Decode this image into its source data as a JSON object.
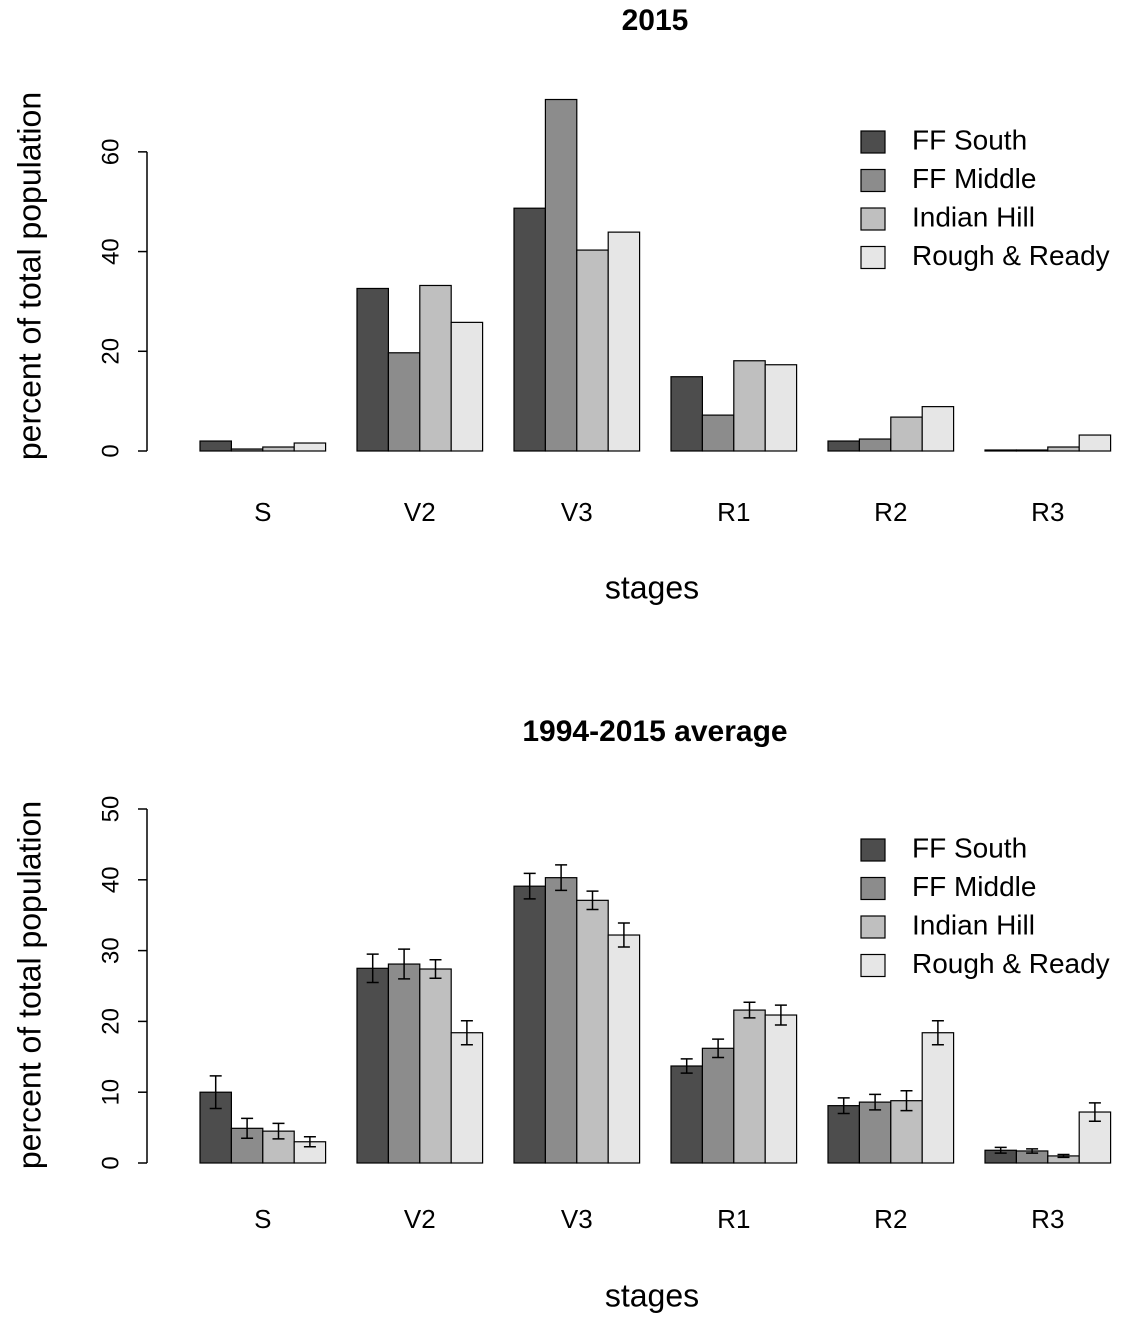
{
  "chart_data": [
    {
      "type": "bar",
      "title": "2015",
      "x_label": "stages",
      "y_label": "percent of total population",
      "categories": [
        "S",
        "V2",
        "V3",
        "R1",
        "R2",
        "R3"
      ],
      "series": [
        {
          "name": "FF South",
          "color": "#4d4d4d",
          "values": [
            2.0,
            32.6,
            48.7,
            14.9,
            2.0,
            0.2
          ]
        },
        {
          "name": "FF Middle",
          "color": "#8c8c8c",
          "values": [
            0.4,
            19.7,
            70.5,
            7.2,
            2.4,
            0.2
          ]
        },
        {
          "name": "Indian Hill",
          "color": "#bfbfbf",
          "values": [
            0.8,
            33.2,
            40.3,
            18.1,
            6.8,
            0.8
          ]
        },
        {
          "name": "Rough & Ready",
          "color": "#e6e6e6",
          "values": [
            1.6,
            25.8,
            43.9,
            17.3,
            8.9,
            3.2
          ]
        }
      ],
      "ylim": [
        0,
        70
      ],
      "yticks": [
        0,
        20,
        40,
        60
      ],
      "legend": "top-right"
    },
    {
      "type": "bar",
      "title": "1994-2015 average",
      "x_label": "stages",
      "y_label": "percent of total population",
      "categories": [
        "S",
        "V2",
        "V3",
        "R1",
        "R2",
        "R3"
      ],
      "series": [
        {
          "name": "FF South",
          "color": "#4d4d4d",
          "values": [
            10.0,
            27.5,
            39.1,
            13.7,
            8.1,
            1.8
          ],
          "errors": [
            2.3,
            2.0,
            1.8,
            1.0,
            1.1,
            0.4
          ]
        },
        {
          "name": "FF Middle",
          "color": "#8c8c8c",
          "values": [
            4.9,
            28.1,
            40.3,
            16.2,
            8.6,
            1.7
          ],
          "errors": [
            1.4,
            2.1,
            1.8,
            1.3,
            1.1,
            0.3
          ]
        },
        {
          "name": "Indian Hill",
          "color": "#bfbfbf",
          "values": [
            4.5,
            27.4,
            37.1,
            21.6,
            8.8,
            1.0
          ],
          "errors": [
            1.1,
            1.3,
            1.3,
            1.1,
            1.4,
            0.2
          ]
        },
        {
          "name": "Rough & Ready",
          "color": "#e6e6e6",
          "values": [
            3.0,
            18.4,
            32.2,
            20.9,
            18.4,
            7.2
          ],
          "errors": [
            0.7,
            1.7,
            1.7,
            1.4,
            1.7,
            1.3
          ]
        }
      ],
      "ylim": [
        0,
        50
      ],
      "yticks": [
        0,
        10,
        20,
        30,
        40,
        50
      ],
      "legend": "top-right"
    }
  ]
}
